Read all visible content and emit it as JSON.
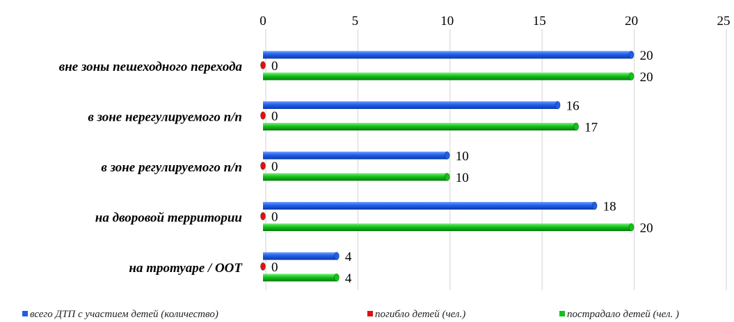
{
  "chart_data": {
    "type": "bar",
    "orientation": "horizontal",
    "title": "",
    "categories": [
      "вне зоны пешеходного перехода",
      "в зоне нерегулируемого п/п",
      "в зоне регулируемого п/п",
      "на дворовой территории",
      "на тротуаре / ООТ"
    ],
    "series": [
      {
        "name": "всего ДТП с участием детей (количество)",
        "color": "#1f5fe8",
        "values": [
          20,
          16,
          10,
          18,
          4
        ]
      },
      {
        "name": "погибло детей (чел.)",
        "color": "#e01010",
        "values": [
          0,
          0,
          0,
          0,
          0
        ]
      },
      {
        "name": "пострадало детей (чел. )",
        "color": "#12c21a",
        "values": [
          20,
          17,
          10,
          20,
          4
        ]
      }
    ],
    "xlim": [
      0,
      25
    ],
    "xticks": [
      0,
      5,
      10,
      15,
      20,
      25
    ],
    "grid": "vertical",
    "legend": "bottom"
  }
}
